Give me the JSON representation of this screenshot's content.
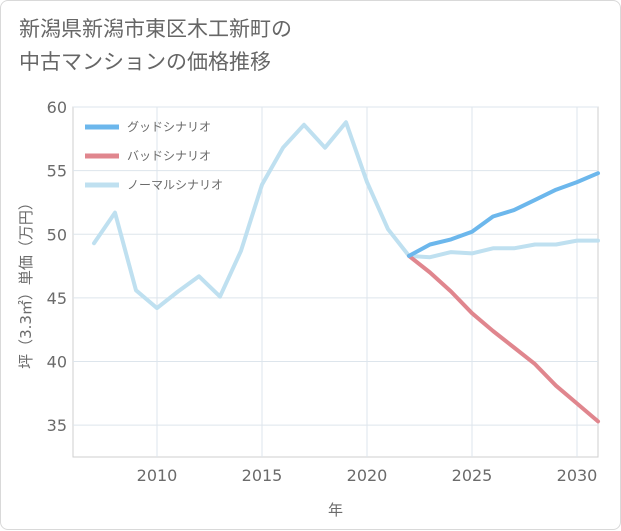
{
  "title": "新潟県新潟市東区木工新町の\n中古マンションの価格推移",
  "chart_data": {
    "type": "line",
    "title": "新潟県新潟市東区木工新町の中古マンションの価格推移",
    "xlabel": "年",
    "ylabel": "坪（3.3㎡）単価（万円）",
    "xlim": [
      2006,
      2031
    ],
    "ylim": [
      32.5,
      60
    ],
    "xticks": [
      2010,
      2015,
      2020,
      2025,
      2030
    ],
    "yticks": [
      35,
      40,
      45,
      50,
      55,
      60
    ],
    "grid": true,
    "legend_position": "top-left",
    "series": [
      {
        "name": "グッドシナリオ",
        "color": "#6cb7ec",
        "x": [
          2022,
          2023,
          2024,
          2025,
          2026,
          2027,
          2028,
          2029,
          2030,
          2031
        ],
        "y": [
          48.3,
          49.2,
          49.6,
          50.2,
          51.4,
          51.9,
          52.7,
          53.5,
          54.1,
          54.8
        ]
      },
      {
        "name": "バッドシナリオ",
        "color": "#e0868e",
        "x": [
          2022,
          2023,
          2024,
          2025,
          2026,
          2027,
          2028,
          2029,
          2030,
          2031
        ],
        "y": [
          48.3,
          47.0,
          45.5,
          43.8,
          42.4,
          41.1,
          39.8,
          38.1,
          36.7,
          35.3
        ]
      },
      {
        "name": "ノーマルシナリオ",
        "color": "#bfe0f0",
        "x": [
          2007,
          2008,
          2009,
          2010,
          2011,
          2012,
          2013,
          2014,
          2015,
          2016,
          2017,
          2018,
          2019,
          2020,
          2021,
          2022,
          2023,
          2024,
          2025,
          2026,
          2027,
          2028,
          2029,
          2030,
          2031
        ],
        "y": [
          49.3,
          51.7,
          45.6,
          44.2,
          45.5,
          46.7,
          45.1,
          48.7,
          53.9,
          56.8,
          58.6,
          56.8,
          58.8,
          54.1,
          50.4,
          48.3,
          48.2,
          48.6,
          48.5,
          48.9,
          48.9,
          49.2,
          49.2,
          49.5,
          49.5
        ]
      }
    ]
  }
}
